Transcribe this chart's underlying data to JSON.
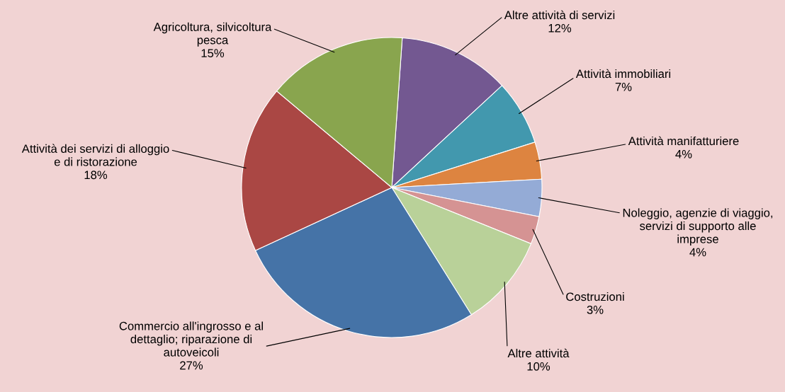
{
  "chart_data": {
    "type": "pie",
    "categories": [
      "Altre attività di servizi",
      "Attività immobiliari",
      "Attività manifatturiere",
      "Noleggio, agenzie di viaggio,\nservizi di supporto alle\nimprese",
      "Costruzioni",
      "Altre attività",
      "Commercio all'ingrosso e al\ndettaglio; riparazione di\nautoveicoli",
      "Attività dei servizi di alloggio\ne di ristorazione",
      "Agricoltura, silvicoltura\npesca"
    ],
    "values": [
      12,
      7,
      4,
      4,
      3,
      10,
      27,
      18,
      15
    ],
    "value_labels": [
      "12%",
      "7%",
      "4%",
      "4%",
      "3%",
      "10%",
      "27%",
      "18%",
      "15%"
    ],
    "colors": [
      "#735891",
      "#4298ae",
      "#dd8440",
      "#94abd6",
      "#d59393",
      "#b9d199",
      "#4573a7",
      "#aa4744",
      "#89a54e"
    ],
    "data_labels": true,
    "legend": false
  }
}
